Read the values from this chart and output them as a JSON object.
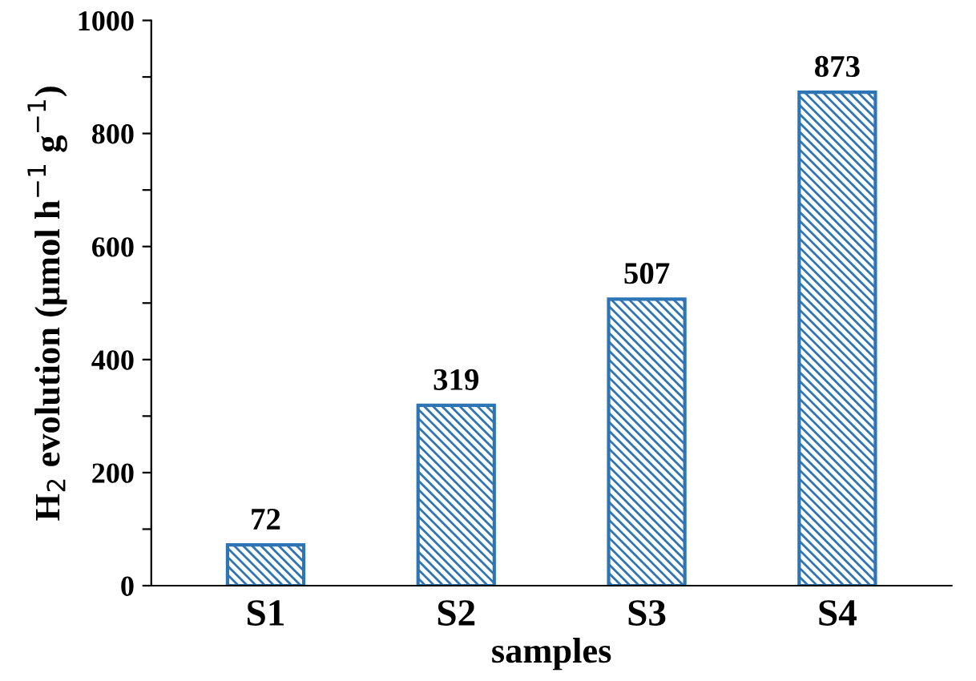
{
  "chart_data": {
    "type": "bar",
    "xlabel": "samples",
    "ylabel": "H$_{2}$ evolution (μmol h$^{−1}$ g$^{−1}$)",
    "categories": [
      "S1",
      "S2",
      "S3",
      "S4"
    ],
    "values": [
      72,
      319,
      507,
      873
    ],
    "color": "#2e75b6",
    "ylim": [
      0,
      1000
    ],
    "yticks": [
      0,
      {
        "value": 100,
        "label": null
      },
      200,
      {
        "value": 300,
        "label": null
      },
      400,
      {
        "value": 500,
        "label": null
      },
      600,
      {
        "value": 700,
        "label": null
      },
      800,
      {
        "value": 900,
        "label": null
      },
      1000
    ],
    "data_labels": true,
    "grid": false,
    "legend": false
  }
}
